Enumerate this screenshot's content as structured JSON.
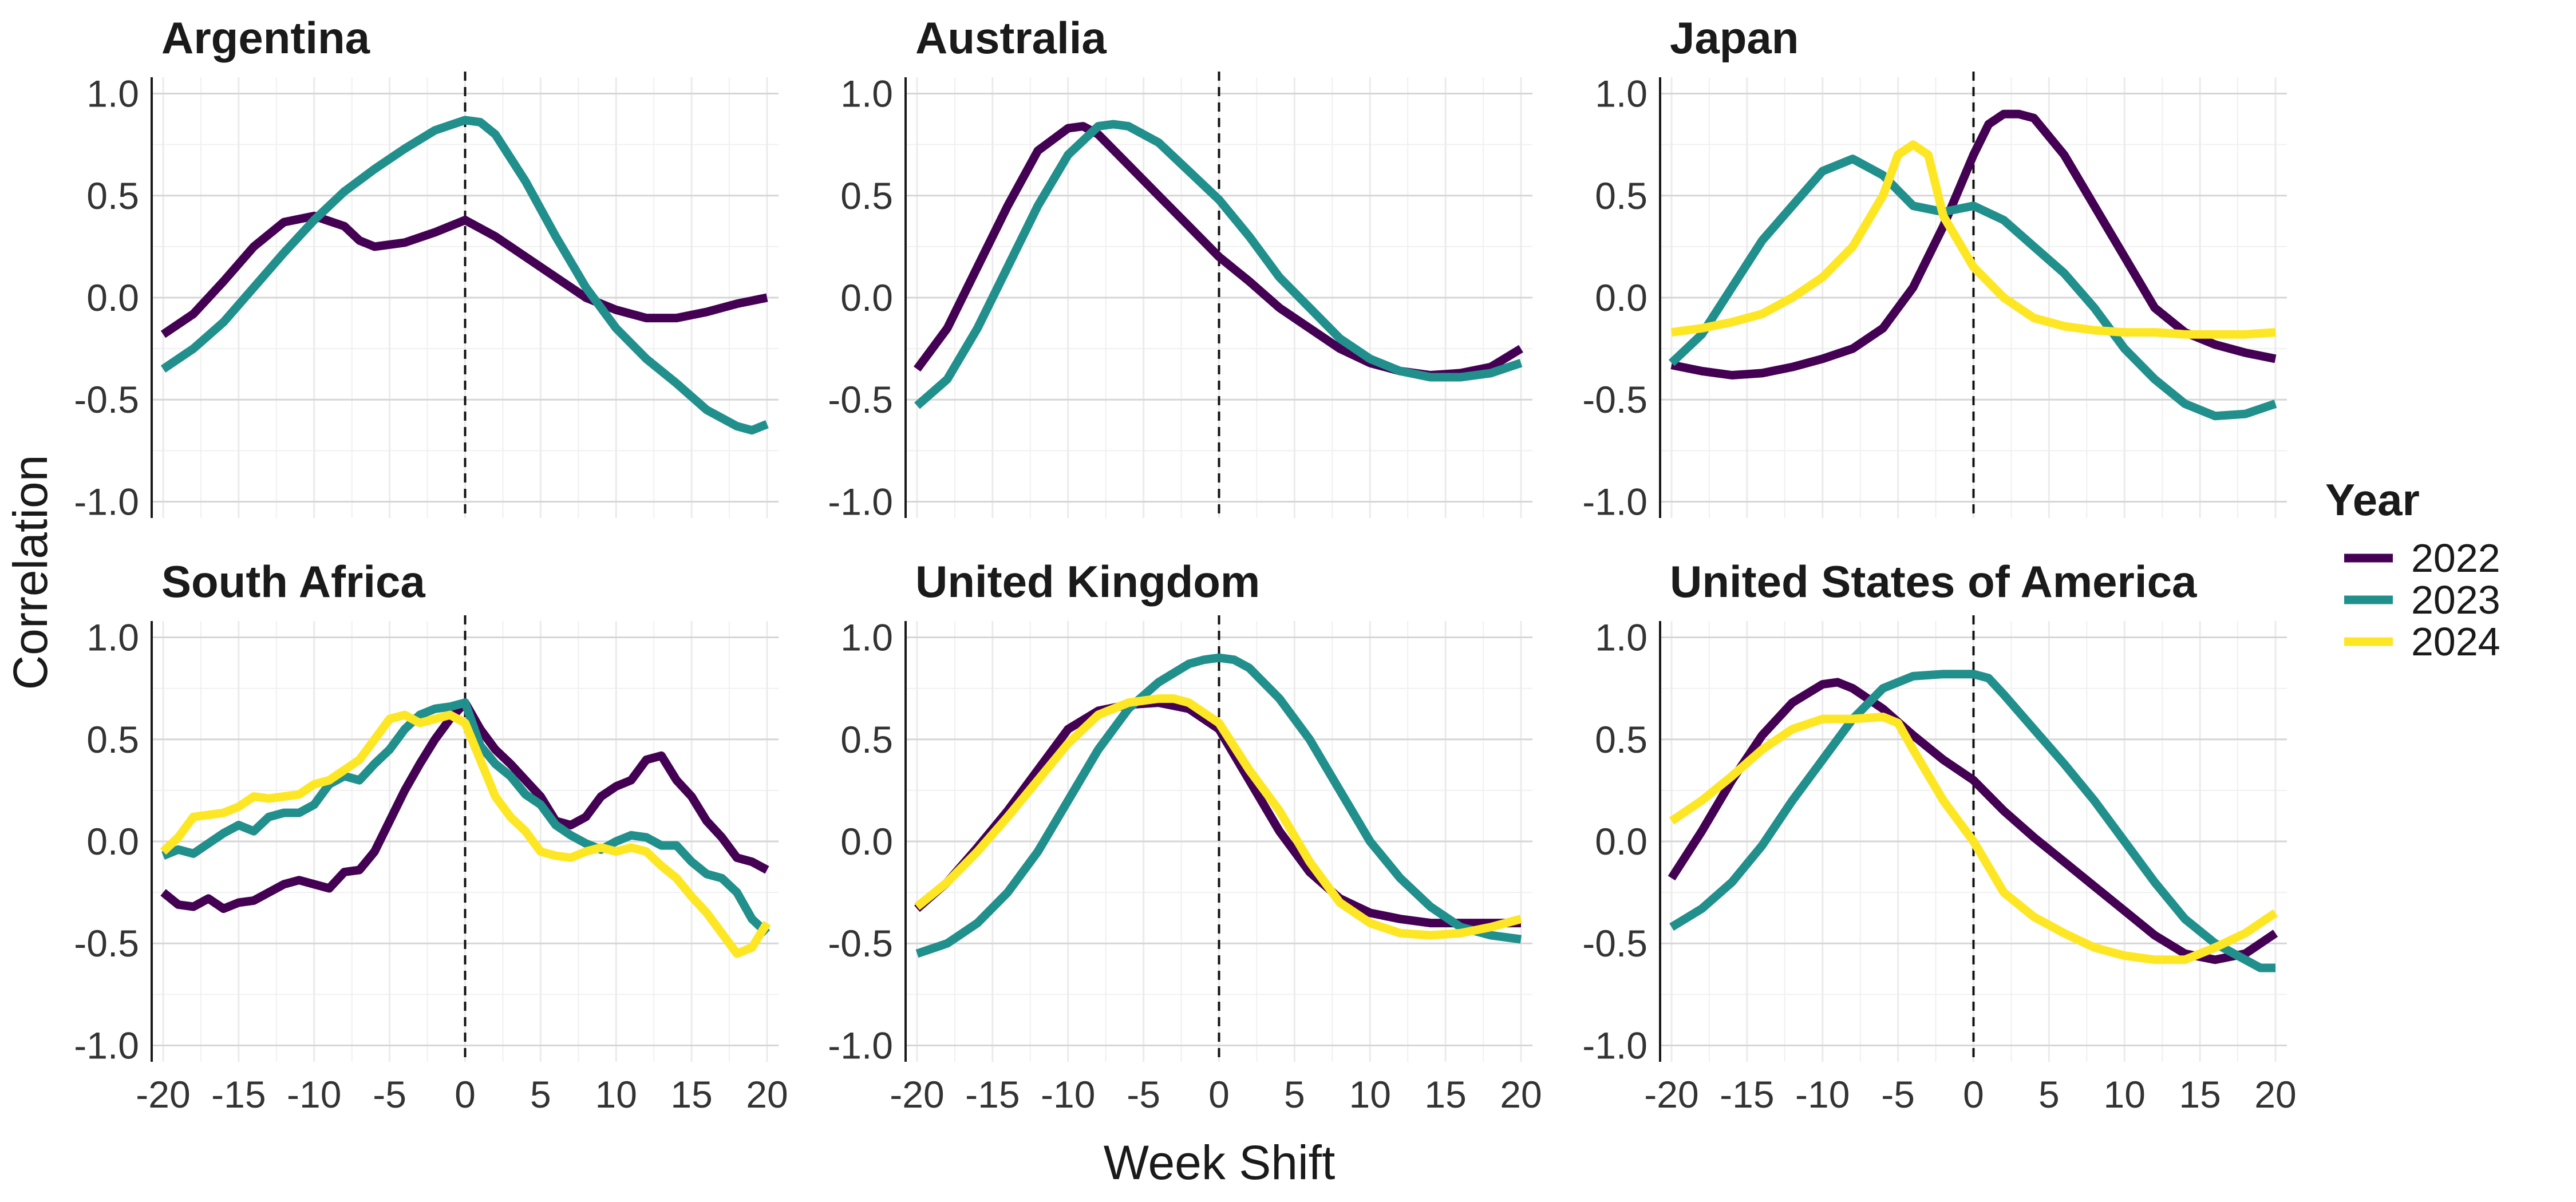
{
  "chart_data": {
    "type": "line",
    "xlabel": "Week Shift",
    "ylabel": "Correlation",
    "xlim": [
      -20,
      20
    ],
    "ylim": [
      -1.0,
      1.0
    ],
    "x_ticks": [
      -20,
      -15,
      -10,
      -5,
      0,
      5,
      10,
      15,
      20
    ],
    "x_tick_labels": [
      "-20",
      "-15",
      "-10",
      "-5",
      "0",
      "5",
      "10",
      "15",
      "20"
    ],
    "y_ticks": [
      -1.0,
      -0.5,
      0.0,
      0.5,
      1.0
    ],
    "y_tick_labels": [
      "-1.0",
      "-0.5",
      "0.0",
      "0.5",
      "1.0"
    ],
    "grid": true,
    "reference_line_x": 0,
    "legend": {
      "title": "Year",
      "placement": "right",
      "entries": [
        {
          "label": "2022",
          "color": "#440154"
        },
        {
          "label": "2023",
          "color": "#21908C"
        },
        {
          "label": "2024",
          "color": "#FDE725"
        }
      ]
    },
    "panels": [
      {
        "title": "Argentina",
        "series": [
          {
            "name": "2022",
            "x": [
              -20,
              -18,
              -16,
              -14,
              -12,
              -10,
              -8,
              -7,
              -6,
              -4,
              -2,
              0,
              2,
              4,
              6,
              8,
              10,
              12,
              14,
              16,
              18,
              20
            ],
            "y": [
              -0.18,
              -0.08,
              0.08,
              0.25,
              0.37,
              0.4,
              0.35,
              0.28,
              0.25,
              0.27,
              0.32,
              0.38,
              0.3,
              0.2,
              0.1,
              0.0,
              -0.06,
              -0.1,
              -0.1,
              -0.07,
              -0.03,
              0.0
            ]
          },
          {
            "name": "2023",
            "x": [
              -20,
              -18,
              -16,
              -14,
              -12,
              -10,
              -8,
              -6,
              -4,
              -2,
              0,
              1,
              2,
              4,
              6,
              8,
              10,
              12,
              14,
              16,
              18,
              19,
              20
            ],
            "y": [
              -0.35,
              -0.25,
              -0.12,
              0.05,
              0.22,
              0.38,
              0.52,
              0.63,
              0.73,
              0.82,
              0.87,
              0.86,
              0.8,
              0.57,
              0.3,
              0.05,
              -0.15,
              -0.3,
              -0.42,
              -0.55,
              -0.63,
              -0.65,
              -0.62
            ]
          }
        ]
      },
      {
        "title": "Australia",
        "series": [
          {
            "name": "2022",
            "x": [
              -20,
              -18,
              -16,
              -14,
              -12,
              -10,
              -9,
              -8,
              -6,
              -4,
              -2,
              0,
              2,
              4,
              6,
              8,
              10,
              12,
              14,
              16,
              18,
              20
            ],
            "y": [
              -0.35,
              -0.15,
              0.15,
              0.45,
              0.72,
              0.83,
              0.84,
              0.8,
              0.65,
              0.5,
              0.35,
              0.2,
              0.08,
              -0.05,
              -0.15,
              -0.25,
              -0.32,
              -0.36,
              -0.38,
              -0.37,
              -0.34,
              -0.25
            ]
          },
          {
            "name": "2023",
            "x": [
              -20,
              -18,
              -16,
              -14,
              -12,
              -10,
              -8,
              -7,
              -6,
              -4,
              -2,
              0,
              2,
              4,
              6,
              8,
              10,
              12,
              14,
              16,
              18,
              20
            ],
            "y": [
              -0.53,
              -0.4,
              -0.15,
              0.15,
              0.45,
              0.7,
              0.84,
              0.85,
              0.84,
              0.76,
              0.62,
              0.48,
              0.3,
              0.1,
              -0.05,
              -0.2,
              -0.3,
              -0.36,
              -0.39,
              -0.39,
              -0.37,
              -0.32
            ]
          }
        ]
      },
      {
        "title": "Japan",
        "series": [
          {
            "name": "2022",
            "x": [
              -20,
              -18,
              -16,
              -14,
              -12,
              -10,
              -8,
              -6,
              -4,
              -2,
              0,
              1,
              2,
              3,
              4,
              6,
              8,
              10,
              12,
              14,
              16,
              18,
              20
            ],
            "y": [
              -0.33,
              -0.36,
              -0.38,
              -0.37,
              -0.34,
              -0.3,
              -0.25,
              -0.15,
              0.05,
              0.35,
              0.7,
              0.85,
              0.9,
              0.9,
              0.88,
              0.7,
              0.45,
              0.2,
              -0.05,
              -0.17,
              -0.23,
              -0.27,
              -0.3
            ]
          },
          {
            "name": "2023",
            "x": [
              -20,
              -18,
              -16,
              -14,
              -12,
              -10,
              -8,
              -6,
              -4,
              -2,
              0,
              2,
              4,
              6,
              8,
              10,
              12,
              14,
              16,
              18,
              20
            ],
            "y": [
              -0.32,
              -0.18,
              0.05,
              0.28,
              0.45,
              0.62,
              0.68,
              0.6,
              0.45,
              0.42,
              0.45,
              0.38,
              0.25,
              0.12,
              -0.05,
              -0.25,
              -0.4,
              -0.52,
              -0.58,
              -0.57,
              -0.52
            ]
          },
          {
            "name": "2024",
            "x": [
              -20,
              -18,
              -16,
              -14,
              -12,
              -10,
              -8,
              -6,
              -5,
              -4,
              -3,
              -2,
              0,
              2,
              4,
              6,
              8,
              10,
              12,
              14,
              16,
              18,
              20
            ],
            "y": [
              -0.17,
              -0.15,
              -0.12,
              -0.08,
              0.0,
              0.1,
              0.25,
              0.5,
              0.7,
              0.75,
              0.7,
              0.4,
              0.15,
              0.0,
              -0.1,
              -0.14,
              -0.16,
              -0.17,
              -0.17,
              -0.18,
              -0.18,
              -0.18,
              -0.17
            ]
          }
        ]
      },
      {
        "title": "South Africa",
        "series": [
          {
            "name": "2022",
            "x": [
              -20,
              -19,
              -18,
              -17,
              -16,
              -15,
              -14,
              -13,
              -12,
              -11,
              -10,
              -9,
              -8,
              -7,
              -6,
              -5,
              -4,
              -3,
              -2,
              -1,
              0,
              1,
              2,
              3,
              4,
              5,
              6,
              7,
              8,
              9,
              10,
              11,
              12,
              13,
              14,
              15,
              16,
              17,
              18,
              19,
              20
            ],
            "y": [
              -0.25,
              -0.31,
              -0.32,
              -0.28,
              -0.33,
              -0.3,
              -0.29,
              -0.25,
              -0.21,
              -0.19,
              -0.21,
              -0.23,
              -0.15,
              -0.14,
              -0.05,
              0.1,
              0.25,
              0.38,
              0.5,
              0.6,
              0.68,
              0.55,
              0.45,
              0.38,
              0.3,
              0.22,
              0.1,
              0.08,
              0.12,
              0.22,
              0.27,
              0.3,
              0.4,
              0.42,
              0.3,
              0.22,
              0.1,
              0.02,
              -0.08,
              -0.1,
              -0.14
            ]
          },
          {
            "name": "2023",
            "x": [
              -20,
              -19,
              -18,
              -17,
              -16,
              -15,
              -14,
              -13,
              -12,
              -11,
              -10,
              -9,
              -8,
              -7,
              -6,
              -5,
              -4,
              -3,
              -2,
              -1,
              0,
              1,
              2,
              3,
              4,
              5,
              6,
              7,
              8,
              9,
              10,
              11,
              12,
              13,
              14,
              15,
              16,
              17,
              18,
              19,
              20
            ],
            "y": [
              -0.07,
              -0.04,
              -0.06,
              -0.01,
              0.04,
              0.08,
              0.05,
              0.12,
              0.14,
              0.14,
              0.18,
              0.28,
              0.32,
              0.3,
              0.38,
              0.45,
              0.55,
              0.62,
              0.65,
              0.66,
              0.68,
              0.47,
              0.38,
              0.32,
              0.23,
              0.18,
              0.08,
              0.03,
              -0.01,
              -0.04,
              0.0,
              0.03,
              0.02,
              -0.02,
              -0.02,
              -0.1,
              -0.16,
              -0.18,
              -0.25,
              -0.38,
              -0.45
            ]
          },
          {
            "name": "2024",
            "x": [
              -20,
              -19,
              -18,
              -17,
              -16,
              -15,
              -14,
              -13,
              -12,
              -11,
              -10,
              -9,
              -8,
              -7,
              -6,
              -5,
              -4,
              -3,
              -2,
              -1,
              0,
              1,
              2,
              3,
              4,
              5,
              6,
              7,
              8,
              9,
              10,
              11,
              12,
              13,
              14,
              15,
              16,
              17,
              18,
              19,
              20
            ],
            "y": [
              -0.05,
              0.02,
              0.12,
              0.13,
              0.14,
              0.17,
              0.22,
              0.21,
              0.22,
              0.23,
              0.28,
              0.3,
              0.35,
              0.4,
              0.5,
              0.6,
              0.62,
              0.58,
              0.6,
              0.62,
              0.58,
              0.4,
              0.22,
              0.12,
              0.05,
              -0.05,
              -0.07,
              -0.08,
              -0.05,
              -0.03,
              -0.05,
              -0.03,
              -0.05,
              -0.12,
              -0.18,
              -0.27,
              -0.35,
              -0.45,
              -0.55,
              -0.52,
              -0.4
            ]
          }
        ]
      },
      {
        "title": "United Kingdom",
        "series": [
          {
            "name": "2022",
            "x": [
              -20,
              -18,
              -16,
              -14,
              -12,
              -10,
              -8,
              -6,
              -4,
              -2,
              0,
              2,
              4,
              6,
              8,
              10,
              12,
              14,
              16,
              18,
              20
            ],
            "y": [
              -0.33,
              -0.2,
              -0.03,
              0.15,
              0.35,
              0.55,
              0.64,
              0.67,
              0.68,
              0.65,
              0.55,
              0.3,
              0.05,
              -0.15,
              -0.28,
              -0.35,
              -0.38,
              -0.4,
              -0.4,
              -0.4,
              -0.4
            ]
          },
          {
            "name": "2023",
            "x": [
              -20,
              -18,
              -16,
              -14,
              -12,
              -10,
              -8,
              -6,
              -4,
              -2,
              -1,
              0,
              1,
              2,
              4,
              6,
              8,
              10,
              12,
              14,
              16,
              18,
              20
            ],
            "y": [
              -0.55,
              -0.5,
              -0.4,
              -0.25,
              -0.05,
              0.2,
              0.45,
              0.65,
              0.78,
              0.87,
              0.89,
              0.9,
              0.89,
              0.85,
              0.7,
              0.5,
              0.25,
              0.0,
              -0.18,
              -0.32,
              -0.42,
              -0.46,
              -0.48
            ]
          },
          {
            "name": "2024",
            "x": [
              -20,
              -18,
              -16,
              -14,
              -12,
              -10,
              -8,
              -6,
              -4,
              -3,
              -2,
              0,
              2,
              4,
              6,
              8,
              10,
              12,
              14,
              16,
              18,
              20
            ],
            "y": [
              -0.32,
              -0.2,
              -0.05,
              0.12,
              0.3,
              0.48,
              0.62,
              0.68,
              0.7,
              0.7,
              0.68,
              0.58,
              0.35,
              0.15,
              -0.1,
              -0.3,
              -0.4,
              -0.45,
              -0.46,
              -0.45,
              -0.42,
              -0.38
            ]
          }
        ]
      },
      {
        "title": "United States of America",
        "series": [
          {
            "name": "2022",
            "x": [
              -20,
              -18,
              -16,
              -14,
              -12,
              -10,
              -9,
              -8,
              -6,
              -4,
              -2,
              0,
              2,
              4,
              6,
              8,
              10,
              12,
              14,
              16,
              18,
              20
            ],
            "y": [
              -0.18,
              0.05,
              0.3,
              0.52,
              0.68,
              0.77,
              0.78,
              0.75,
              0.65,
              0.52,
              0.4,
              0.3,
              0.15,
              0.02,
              -0.1,
              -0.22,
              -0.34,
              -0.46,
              -0.55,
              -0.58,
              -0.55,
              -0.45
            ]
          },
          {
            "name": "2023",
            "x": [
              -20,
              -18,
              -16,
              -14,
              -12,
              -10,
              -8,
              -6,
              -4,
              -2,
              0,
              1,
              2,
              4,
              6,
              8,
              10,
              12,
              14,
              16,
              18,
              19,
              20
            ],
            "y": [
              -0.42,
              -0.33,
              -0.2,
              -0.02,
              0.2,
              0.4,
              0.6,
              0.75,
              0.81,
              0.82,
              0.82,
              0.8,
              0.72,
              0.55,
              0.38,
              0.2,
              0.0,
              -0.2,
              -0.38,
              -0.5,
              -0.58,
              -0.62,
              -0.62
            ]
          },
          {
            "name": "2024",
            "x": [
              -20,
              -18,
              -16,
              -14,
              -12,
              -10,
              -8,
              -6,
              -5,
              -4,
              -2,
              0,
              2,
              4,
              6,
              8,
              10,
              12,
              14,
              16,
              18,
              20
            ],
            "y": [
              0.1,
              0.2,
              0.32,
              0.45,
              0.55,
              0.6,
              0.6,
              0.61,
              0.58,
              0.45,
              0.2,
              0.0,
              -0.25,
              -0.37,
              -0.45,
              -0.52,
              -0.56,
              -0.58,
              -0.58,
              -0.52,
              -0.45,
              -0.35
            ]
          }
        ]
      }
    ]
  }
}
